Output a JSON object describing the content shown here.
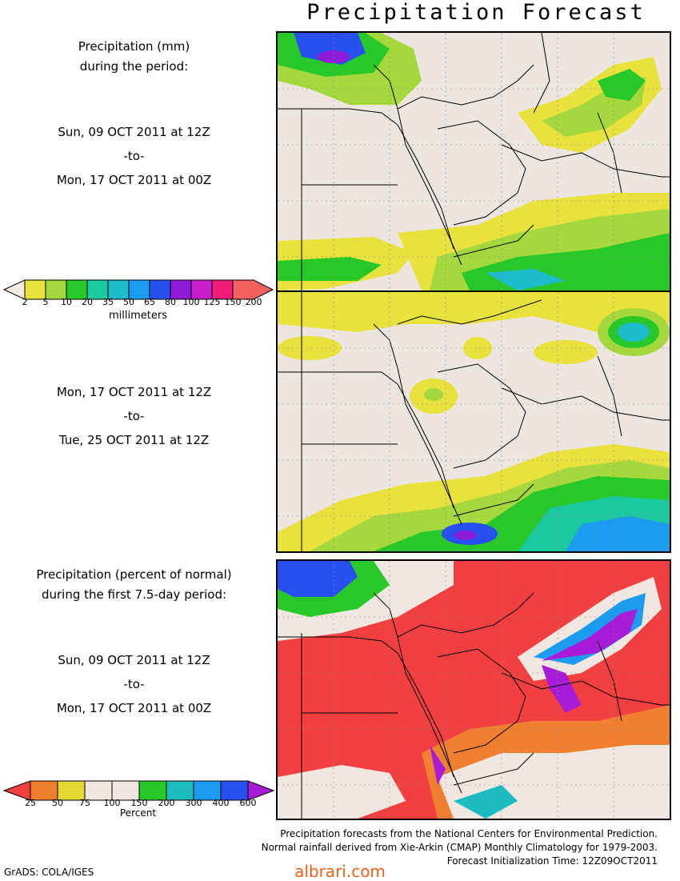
{
  "title": "Precipitation Forecast",
  "panel1_text": {
    "heading_line1": "Precipitation (mm)",
    "heading_line2": "during the period:",
    "start": "Sun, 09 OCT 2011 at 12Z",
    "sep": "-to-",
    "end": "Mon, 17 OCT 2011 at 00Z"
  },
  "panel2_text": {
    "start": "Mon, 17 OCT 2011 at 12Z",
    "sep": "-to-",
    "end": "Tue, 25 OCT 2011 at 12Z"
  },
  "panel3_text": {
    "heading_line1": "Precipitation (percent of normal)",
    "heading_line2": "during the first 7.5-day period:",
    "start": "Sun, 09 OCT 2011 at 12Z",
    "sep": "-to-",
    "end": "Mon, 17 OCT 2011 at 00Z"
  },
  "legend_mm": {
    "unit": "millimeters",
    "labels": [
      "2",
      "5",
      "10",
      "20",
      "35",
      "50",
      "65",
      "80",
      "100",
      "125",
      "150",
      "200"
    ],
    "colors": [
      "#f2ece4",
      "#e8e23c",
      "#a4d83c",
      "#28c828",
      "#1cc8a0",
      "#1cbccc",
      "#1c9cf0",
      "#2850f0",
      "#8c1cd8",
      "#c81cc8",
      "#f01c78",
      "#f26060"
    ]
  },
  "legend_pct": {
    "unit": "Percent",
    "labels": [
      "25",
      "50",
      "75",
      "100",
      "150",
      "200",
      "300",
      "400",
      "600"
    ],
    "colors": [
      "#f24040",
      "#f08030",
      "#e4d832",
      "#f0e8e0",
      "#f0e8e0",
      "#28c828",
      "#1cbcc0",
      "#1c9cf0",
      "#2850f0",
      "#a81cd8"
    ]
  },
  "map_colors": {
    "land": "#ede5df",
    "percent_base": "#f24040"
  },
  "footer": {
    "line1": "Precipitation forecasts from the National Centers for Environmental Prediction.",
    "line2": "Normal rainfall derived from Xie-Arkin (CMAP) Monthly Climatology for 1979-2003.",
    "line3": "Forecast Initialization Time: 12Z09OCT2011"
  },
  "credit": "GrADS: COLA/IGES",
  "watermark": "albrari.com"
}
